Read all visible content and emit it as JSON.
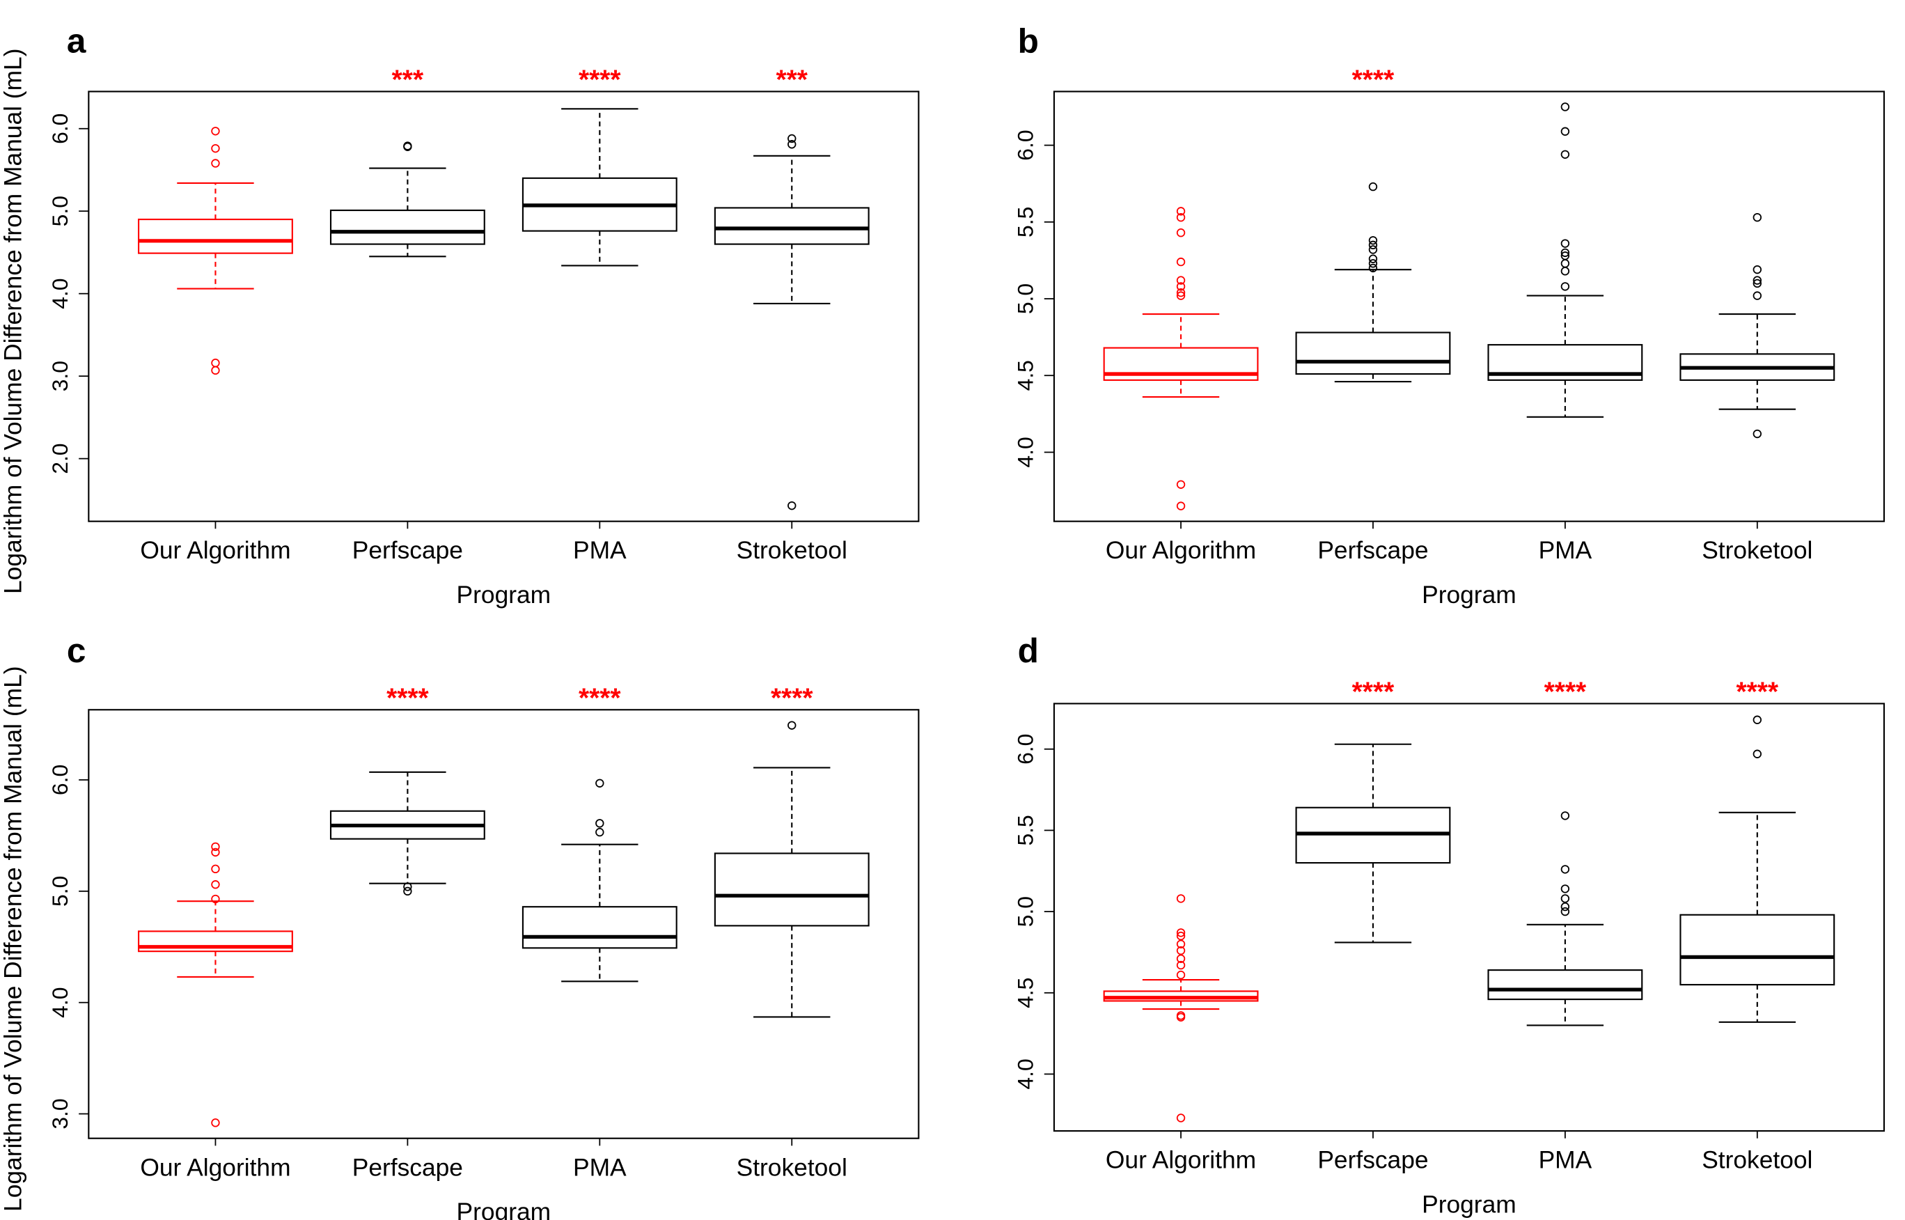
{
  "chart_data": [
    {
      "type": "box",
      "panel": "a",
      "x_label": "Program",
      "y_label": "Logarithm of Volume Difference from Manual (mL)",
      "categories": [
        "Our Algorithm",
        "Perfscape",
        "PMA",
        "Stroketool"
      ],
      "colors": [
        "#ff0000",
        "#000000",
        "#000000",
        "#000000"
      ],
      "significance": [
        null,
        "***",
        "****",
        "***"
      ],
      "ylim": [
        1.24,
        6.45
      ],
      "yticks": [
        {
          "value": 2,
          "label": "2.0"
        },
        {
          "value": 3,
          "label": "3.0"
        },
        {
          "value": 4,
          "label": "4.0"
        },
        {
          "value": 5,
          "label": "5.0"
        },
        {
          "value": 6,
          "label": "6.0"
        }
      ],
      "boxes": [
        {
          "whislo": 4.06,
          "q1": 4.49,
          "med": 4.64,
          "q3": 4.9,
          "whishi": 5.34,
          "outliers": [
            5.97,
            5.76,
            5.58,
            3.16,
            3.07
          ]
        },
        {
          "whislo": 4.45,
          "q1": 4.6,
          "med": 4.75,
          "q3": 5.01,
          "whishi": 5.52,
          "outliers": [
            5.79,
            5.78
          ]
        },
        {
          "whislo": 4.34,
          "q1": 4.76,
          "med": 5.07,
          "q3": 5.4,
          "whishi": 6.24,
          "outliers": []
        },
        {
          "whislo": 3.88,
          "q1": 4.6,
          "med": 4.79,
          "q3": 5.04,
          "whishi": 5.67,
          "outliers": [
            5.88,
            5.81,
            1.43
          ]
        }
      ]
    },
    {
      "type": "box",
      "panel": "b",
      "x_label": "Program",
      "categories": [
        "Our Algorithm",
        "Perfscape",
        "PMA",
        "Stroketool"
      ],
      "colors": [
        "#ff0000",
        "#000000",
        "#000000",
        "#000000"
      ],
      "significance": [
        null,
        "****",
        null,
        null
      ],
      "ylim": [
        3.55,
        6.35
      ],
      "yticks": [
        {
          "value": 4,
          "label": "4.0"
        },
        4.5,
        {
          "value": 5,
          "label": "5.0"
        },
        5.5,
        {
          "value": 6,
          "label": "6.0"
        }
      ],
      "boxes": [
        {
          "whislo": 4.36,
          "q1": 4.47,
          "med": 4.51,
          "q3": 4.68,
          "whishi": 4.9,
          "outliers": [
            5.57,
            5.53,
            5.43,
            5.24,
            5.12,
            5.08,
            5.04,
            5.02,
            3.79,
            3.65
          ]
        },
        {
          "whislo": 4.46,
          "q1": 4.51,
          "med": 4.59,
          "q3": 4.78,
          "whishi": 5.19,
          "outliers": [
            5.73,
            5.38,
            5.35,
            5.32,
            5.26,
            5.23,
            5.2
          ]
        },
        {
          "whislo": 4.23,
          "q1": 4.47,
          "med": 4.51,
          "q3": 4.7,
          "whishi": 5.02,
          "outliers": [
            6.25,
            6.09,
            5.94,
            5.36,
            5.3,
            5.28,
            5.23,
            5.18,
            5.08
          ]
        },
        {
          "whislo": 4.28,
          "q1": 4.47,
          "med": 4.55,
          "q3": 4.64,
          "whishi": 4.9,
          "outliers": [
            5.53,
            5.19,
            5.12,
            5.1,
            5.02,
            4.12
          ]
        }
      ]
    },
    {
      "type": "box",
      "panel": "c",
      "x_label": "Program",
      "y_label": "Logarithm of Volume Difference from Manual (mL)",
      "categories": [
        "Our Algorithm",
        "Perfscape",
        "PMA",
        "Stroketool"
      ],
      "colors": [
        "#ff0000",
        "#000000",
        "#000000",
        "#000000"
      ],
      "significance": [
        null,
        "****",
        "****",
        "****"
      ],
      "ylim": [
        2.78,
        6.63
      ],
      "yticks": [
        {
          "value": 3,
          "label": "3.0"
        },
        {
          "value": 4,
          "label": "4.0"
        },
        {
          "value": 5,
          "label": "5.0"
        },
        {
          "value": 6,
          "label": "6.0"
        }
      ],
      "boxes": [
        {
          "whislo": 4.23,
          "q1": 4.46,
          "med": 4.5,
          "q3": 4.64,
          "whishi": 4.91,
          "outliers": [
            5.4,
            5.35,
            5.2,
            5.06,
            4.93,
            2.92
          ]
        },
        {
          "whislo": 5.07,
          "q1": 5.47,
          "med": 5.59,
          "q3": 5.72,
          "whishi": 6.07,
          "outliers": [
            5.04,
            5.0
          ]
        },
        {
          "whislo": 4.19,
          "q1": 4.49,
          "med": 4.59,
          "q3": 4.86,
          "whishi": 5.42,
          "outliers": [
            5.97,
            5.61,
            5.53
          ]
        },
        {
          "whislo": 3.87,
          "q1": 4.69,
          "med": 4.96,
          "q3": 5.34,
          "whishi": 6.11,
          "outliers": [
            6.49
          ]
        }
      ]
    },
    {
      "type": "box",
      "panel": "d",
      "x_label": "Program",
      "categories": [
        "Our Algorithm",
        "Perfscape",
        "PMA",
        "Stroketool"
      ],
      "colors": [
        "#ff0000",
        "#000000",
        "#000000",
        "#000000"
      ],
      "significance": [
        null,
        "****",
        "****",
        "****"
      ],
      "ylim": [
        3.65,
        6.28
      ],
      "yticks": [
        {
          "value": 4,
          "label": "4.0"
        },
        4.5,
        {
          "value": 5,
          "label": "5.0"
        },
        5.5,
        {
          "value": 6,
          "label": "6.0"
        }
      ],
      "boxes": [
        {
          "whislo": 4.4,
          "q1": 4.45,
          "med": 4.47,
          "q3": 4.51,
          "whishi": 4.58,
          "outliers": [
            5.08,
            4.87,
            4.85,
            4.8,
            4.76,
            4.71,
            4.67,
            4.61,
            4.36,
            4.35,
            3.73
          ]
        },
        {
          "whislo": 4.81,
          "q1": 5.3,
          "med": 5.48,
          "q3": 5.64,
          "whishi": 6.03,
          "outliers": []
        },
        {
          "whislo": 4.3,
          "q1": 4.46,
          "med": 4.52,
          "q3": 4.64,
          "whishi": 4.92,
          "outliers": [
            5.59,
            5.26,
            5.14,
            5.08,
            5.03,
            5.0
          ]
        },
        {
          "whislo": 4.32,
          "q1": 4.55,
          "med": 4.72,
          "q3": 4.98,
          "whishi": 5.61,
          "outliers": [
            6.18,
            5.97
          ]
        }
      ]
    }
  ]
}
